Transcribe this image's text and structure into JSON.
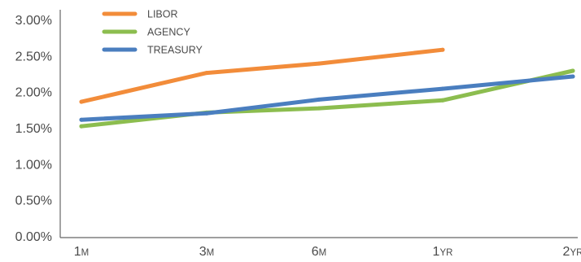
{
  "chart_data": {
    "type": "line",
    "categories": [
      {
        "main": "1",
        "unit": "M"
      },
      {
        "main": "3",
        "unit": "M"
      },
      {
        "main": "6",
        "unit": "M"
      },
      {
        "main": "1",
        "unit": "YR"
      },
      {
        "main": "2",
        "unit": "YR"
      }
    ],
    "y_ticks": [
      "0.00%",
      "0.50%",
      "1.00%",
      "1.50%",
      "2.00%",
      "2.50%",
      "3.00%"
    ],
    "ylim": [
      0,
      3
    ],
    "grid": false,
    "legend_position": "top-left",
    "series": [
      {
        "name": "LIBOR",
        "color": "#f28c3a",
        "values": [
          1.86,
          2.26,
          2.39,
          2.58,
          null
        ]
      },
      {
        "name": "AGENCY",
        "color": "#8cbd4f",
        "values": [
          1.52,
          1.71,
          1.77,
          1.88,
          2.29
        ]
      },
      {
        "name": "TREASURY",
        "color": "#4a7ebf",
        "values": [
          1.61,
          1.7,
          1.89,
          2.04,
          2.21
        ]
      }
    ],
    "title": "",
    "xlabel": "",
    "ylabel": ""
  }
}
